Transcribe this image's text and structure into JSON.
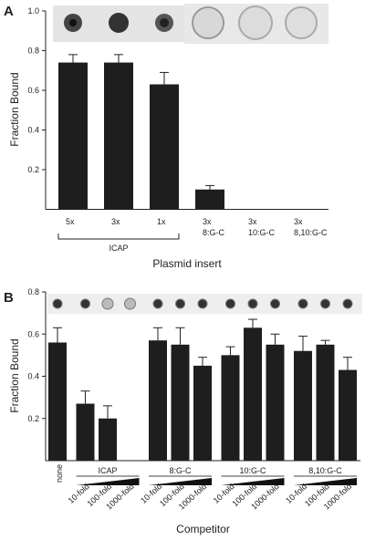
{
  "charts": [
    {
      "type": "bar",
      "panel_label": "A",
      "y_label": "Fraction Bound",
      "x_label": "Plasmid insert",
      "categories": [
        [
          "5x"
        ],
        [
          "3x"
        ],
        [
          "1x"
        ],
        [
          "3x",
          "8:G-C"
        ],
        [
          "3x",
          "10:G-C"
        ],
        [
          "3x",
          "8,10:G-C"
        ]
      ],
      "category_groups": [
        "ICAP",
        "ICAP",
        "ICAP",
        null,
        null,
        null
      ],
      "values": [
        0.74,
        0.74,
        0.63,
        0.1,
        0,
        0
      ],
      "errors": [
        0.04,
        0.04,
        0.06,
        0.02,
        null,
        null
      ],
      "color": "#1e1e1e",
      "ylim": [
        0,
        1
      ],
      "yticks": [
        0.2,
        0.4,
        0.6,
        0.8,
        {
          "value": 1,
          "label": "1.0"
        }
      ]
    },
    {
      "type": "bar",
      "panel_label": "B",
      "y_label": "Fraction Bound",
      "x_label": "Competitor",
      "categories": [
        [
          "none"
        ],
        [
          "10-fold"
        ],
        [
          "100-fold"
        ],
        [
          "1000-fold"
        ],
        [
          "10-fold"
        ],
        [
          "100-fold"
        ],
        [
          "1000-fold"
        ],
        [
          "10-fold"
        ],
        [
          "100-fold"
        ],
        [
          "1000-fold"
        ],
        [
          "10-fold"
        ],
        [
          "100-fold"
        ],
        [
          "1000-fold"
        ]
      ],
      "category_groups": [
        null,
        "ICAP",
        "ICAP",
        "ICAP",
        "8:G-C",
        "8:G-C",
        "8:G-C",
        "10:G-C",
        "10:G-C",
        "10:G-C",
        "8,10:G-C",
        "8,10:G-C",
        "8,10:G-C"
      ],
      "values": [
        0.56,
        0.27,
        0.2,
        0,
        0.57,
        0.55,
        0.45,
        0.5,
        0.63,
        0.55,
        0.52,
        0.55,
        0.43
      ],
      "errors": [
        0.07,
        0.06,
        0.06,
        null,
        0.06,
        0.08,
        0.04,
        0.04,
        0.04,
        0.05,
        0.07,
        0.02,
        0.06
      ],
      "color": "#1e1e1e",
      "ylim": [
        0,
        0.8
      ],
      "yticks": [
        0.2,
        0.4,
        0.6,
        0.8
      ]
    }
  ]
}
